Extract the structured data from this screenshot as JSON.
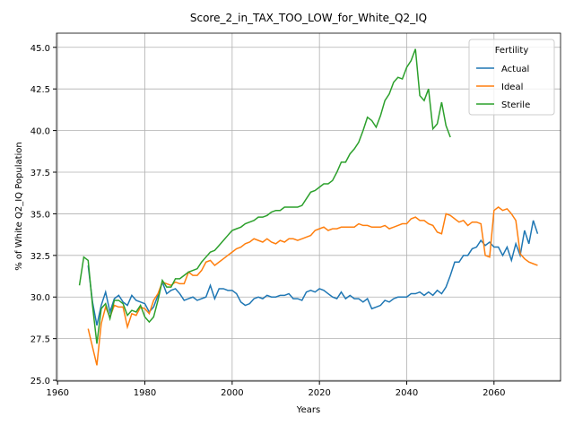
{
  "chart_data": {
    "type": "line",
    "title": "Score_2_in_TAX_TOO_LOW_for_White_Q2_IQ",
    "x_label": "Years",
    "y_label": "% of White Q2_IQ Population",
    "legend_title": "Fertility",
    "legend": "upper right",
    "grid": true,
    "xlim": [
      1959.75,
      2075.25
    ],
    "ylim": [
      24.95,
      45.85
    ],
    "xticks": [
      1960,
      1980,
      2000,
      2020,
      2040,
      2060
    ],
    "yticks": [
      {
        "value": 25,
        "label": "25.0"
      },
      {
        "value": 27.5,
        "label": "27.5"
      },
      {
        "value": 30,
        "label": "30.0"
      },
      {
        "value": 32.5,
        "label": "32.5"
      },
      {
        "value": 35,
        "label": "35.0"
      },
      {
        "value": 37.5,
        "label": "37.5"
      },
      {
        "value": 40,
        "label": "40.0"
      },
      {
        "value": 42.5,
        "label": "42.5"
      },
      {
        "value": 45,
        "label": "45.0"
      }
    ],
    "x": [
      1965,
      1966,
      1967,
      1968,
      1969,
      1970,
      1971,
      1972,
      1973,
      1974,
      1975,
      1976,
      1977,
      1978,
      1979,
      1980,
      1981,
      1982,
      1983,
      1984,
      1985,
      1986,
      1987,
      1988,
      1989,
      1990,
      1991,
      1992,
      1993,
      1994,
      1995,
      1996,
      1997,
      1998,
      1999,
      2000,
      2001,
      2002,
      2003,
      2004,
      2005,
      2006,
      2007,
      2008,
      2009,
      2010,
      2011,
      2012,
      2013,
      2014,
      2015,
      2016,
      2017,
      2018,
      2019,
      2020,
      2021,
      2022,
      2023,
      2024,
      2025,
      2026,
      2027,
      2028,
      2029,
      2030,
      2031,
      2032,
      2033,
      2034,
      2035,
      2036,
      2037,
      2038,
      2039,
      2040,
      2041,
      2042,
      2043,
      2044,
      2045,
      2046,
      2047,
      2048,
      2049,
      2050,
      2051,
      2052,
      2053,
      2054,
      2055,
      2056,
      2057,
      2058,
      2059,
      2060,
      2061,
      2062,
      2063,
      2064,
      2065,
      2066,
      2067,
      2068,
      2069,
      2070
    ],
    "series": [
      {
        "name": "Actual",
        "color": "#1f77b4",
        "values": [
          null,
          null,
          31.9,
          29.7,
          28.3,
          29.5,
          30.3,
          29.1,
          29.9,
          30.1,
          29.7,
          29.5,
          30.1,
          29.8,
          29.7,
          29.6,
          29.1,
          29.4,
          30.1,
          30.9,
          30.2,
          30.4,
          30.5,
          30.2,
          29.8,
          29.9,
          30.0,
          29.8,
          29.9,
          30.0,
          30.7,
          29.9,
          30.5,
          30.5,
          30.4,
          30.4,
          30.2,
          29.7,
          29.5,
          29.6,
          29.9,
          30.0,
          29.9,
          30.1,
          30.0,
          30.0,
          30.1,
          30.1,
          30.2,
          29.9,
          29.9,
          29.8,
          30.3,
          30.4,
          30.3,
          30.5,
          30.4,
          30.2,
          30.0,
          29.9,
          30.3,
          29.9,
          30.1,
          29.9,
          29.9,
          29.7,
          29.9,
          29.3,
          29.4,
          29.5,
          29.8,
          29.7,
          29.9,
          30.0,
          30.0,
          30.0,
          30.2,
          30.2,
          30.3,
          30.1,
          30.3,
          30.1,
          30.4,
          30.2,
          30.6,
          31.3,
          32.1,
          32.1,
          32.5,
          32.5,
          32.9,
          33.0,
          33.4,
          33.1,
          33.3,
          33.0,
          33.0,
          32.5,
          33.0,
          32.2,
          33.2,
          32.5,
          34.0,
          33.2,
          34.6,
          33.8
        ]
      },
      {
        "name": "Ideal",
        "color": "#ff7f0e",
        "values": [
          null,
          null,
          28.1,
          27.0,
          25.9,
          28.4,
          29.4,
          28.8,
          29.5,
          29.4,
          29.4,
          28.2,
          29.0,
          28.9,
          29.4,
          29.3,
          29.0,
          29.8,
          30.2,
          30.9,
          30.8,
          30.7,
          30.9,
          30.8,
          30.8,
          31.5,
          31.3,
          31.3,
          31.6,
          32.1,
          32.2,
          31.9,
          32.1,
          32.3,
          32.5,
          32.7,
          32.9,
          33.0,
          33.2,
          33.3,
          33.5,
          33.4,
          33.3,
          33.5,
          33.3,
          33.2,
          33.4,
          33.3,
          33.5,
          33.5,
          33.4,
          33.5,
          33.6,
          33.7,
          34.0,
          34.1,
          34.2,
          34.0,
          34.1,
          34.1,
          34.2,
          34.2,
          34.2,
          34.2,
          34.4,
          34.3,
          34.3,
          34.2,
          34.2,
          34.2,
          34.3,
          34.1,
          34.2,
          34.3,
          34.4,
          34.4,
          34.7,
          34.8,
          34.6,
          34.6,
          34.4,
          34.3,
          33.9,
          33.8,
          35.0,
          34.9,
          34.7,
          34.5,
          34.6,
          34.3,
          34.5,
          34.5,
          34.4,
          32.5,
          32.4,
          35.2,
          35.4,
          35.2,
          35.3,
          35.0,
          34.6,
          32.6,
          32.3,
          32.1,
          32.0,
          31.9
        ]
      },
      {
        "name": "Sterile",
        "color": "#2ca02c",
        "values": [
          30.7,
          32.4,
          32.2,
          29.5,
          27.2,
          29.3,
          29.6,
          28.7,
          29.8,
          29.8,
          29.6,
          28.9,
          29.2,
          29.1,
          29.5,
          28.8,
          28.5,
          28.8,
          29.8,
          31.0,
          30.6,
          30.6,
          31.1,
          31.1,
          31.3,
          31.5,
          31.6,
          31.7,
          32.1,
          32.4,
          32.7,
          32.8,
          33.1,
          33.4,
          33.7,
          34.0,
          34.1,
          34.2,
          34.4,
          34.5,
          34.6,
          34.8,
          34.8,
          34.9,
          35.1,
          35.2,
          35.2,
          35.4,
          35.4,
          35.4,
          35.4,
          35.5,
          35.9,
          36.3,
          36.4,
          36.6,
          36.8,
          36.8,
          37.0,
          37.5,
          38.1,
          38.1,
          38.6,
          38.9,
          39.3,
          40.0,
          40.8,
          40.6,
          40.2,
          40.9,
          41.8,
          42.2,
          42.9,
          43.2,
          43.1,
          43.8,
          44.2,
          44.9,
          42.1,
          41.8,
          42.5,
          40.1,
          40.4,
          41.7,
          40.3,
          39.6,
          null,
          null,
          null,
          null,
          null,
          null,
          null,
          null,
          null,
          null,
          null,
          null,
          null,
          null,
          null,
          null,
          null,
          null,
          null,
          null
        ]
      }
    ]
  }
}
